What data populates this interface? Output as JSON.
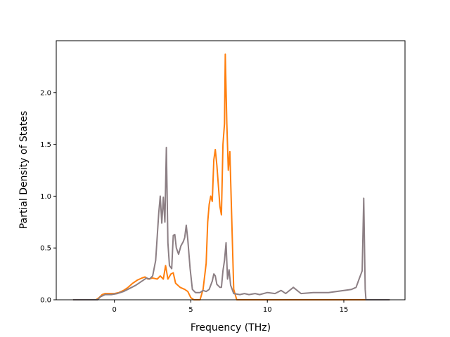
{
  "chart_data": {
    "type": "line",
    "title": "",
    "xlabel": "Frequency (THz)",
    "ylabel": "Partial Density of States",
    "xlim": [
      -3.8,
      19.0
    ],
    "ylim": [
      0.0,
      2.5
    ],
    "xticks": [
      0,
      5,
      10,
      15
    ],
    "yticks": [
      0.0,
      0.5,
      1.0,
      1.5,
      2.0
    ],
    "ytick_labels": [
      "0.0",
      "0.5",
      "1.0",
      "1.5",
      "2.0"
    ],
    "grid": false,
    "legend": "none",
    "series": [
      {
        "color": "#ff7f0e",
        "points": [
          [
            -2.7,
            0.0
          ],
          [
            -1.2,
            0.0
          ],
          [
            -1.0,
            0.02
          ],
          [
            -0.8,
            0.05
          ],
          [
            -0.6,
            0.06
          ],
          [
            -0.3,
            0.06
          ],
          [
            0.0,
            0.06
          ],
          [
            0.3,
            0.07
          ],
          [
            0.6,
            0.09
          ],
          [
            0.9,
            0.12
          ],
          [
            1.2,
            0.16
          ],
          [
            1.5,
            0.19
          ],
          [
            1.8,
            0.21
          ],
          [
            2.0,
            0.22
          ],
          [
            2.2,
            0.2
          ],
          [
            2.5,
            0.21
          ],
          [
            2.8,
            0.2
          ],
          [
            3.0,
            0.23
          ],
          [
            3.2,
            0.2
          ],
          [
            3.35,
            0.33
          ],
          [
            3.5,
            0.2
          ],
          [
            3.7,
            0.25
          ],
          [
            3.85,
            0.26
          ],
          [
            4.0,
            0.16
          ],
          [
            4.3,
            0.12
          ],
          [
            4.6,
            0.1
          ],
          [
            4.8,
            0.08
          ],
          [
            5.0,
            0.02
          ],
          [
            5.2,
            0.0
          ],
          [
            5.6,
            0.0
          ],
          [
            5.8,
            0.1
          ],
          [
            6.0,
            0.35
          ],
          [
            6.1,
            0.75
          ],
          [
            6.2,
            0.92
          ],
          [
            6.3,
            1.0
          ],
          [
            6.4,
            0.95
          ],
          [
            6.5,
            1.35
          ],
          [
            6.6,
            1.45
          ],
          [
            6.7,
            1.3
          ],
          [
            6.8,
            1.1
          ],
          [
            6.9,
            0.9
          ],
          [
            7.0,
            0.82
          ],
          [
            7.1,
            1.5
          ],
          [
            7.2,
            1.7
          ],
          [
            7.25,
            2.37
          ],
          [
            7.35,
            1.7
          ],
          [
            7.45,
            1.25
          ],
          [
            7.55,
            1.43
          ],
          [
            7.65,
            0.9
          ],
          [
            7.8,
            0.1
          ],
          [
            8.0,
            0.0
          ],
          [
            9.0,
            0.0
          ],
          [
            13.0,
            0.0
          ],
          [
            16.4,
            0.0
          ],
          [
            18.0,
            0.0
          ]
        ]
      },
      {
        "color": "#8c7f84",
        "points": [
          [
            -2.7,
            0.0
          ],
          [
            -1.1,
            0.0
          ],
          [
            -0.9,
            0.03
          ],
          [
            -0.6,
            0.05
          ],
          [
            -0.2,
            0.05
          ],
          [
            0.2,
            0.06
          ],
          [
            0.6,
            0.08
          ],
          [
            1.0,
            0.11
          ],
          [
            1.4,
            0.14
          ],
          [
            1.8,
            0.18
          ],
          [
            2.1,
            0.21
          ],
          [
            2.3,
            0.2
          ],
          [
            2.5,
            0.23
          ],
          [
            2.7,
            0.38
          ],
          [
            2.9,
            0.84
          ],
          [
            3.0,
            1.0
          ],
          [
            3.1,
            0.74
          ],
          [
            3.2,
            0.99
          ],
          [
            3.3,
            0.75
          ],
          [
            3.4,
            1.47
          ],
          [
            3.5,
            0.55
          ],
          [
            3.6,
            0.33
          ],
          [
            3.75,
            0.3
          ],
          [
            3.85,
            0.62
          ],
          [
            3.95,
            0.63
          ],
          [
            4.05,
            0.5
          ],
          [
            4.2,
            0.44
          ],
          [
            4.35,
            0.52
          ],
          [
            4.5,
            0.56
          ],
          [
            4.6,
            0.6
          ],
          [
            4.7,
            0.72
          ],
          [
            4.8,
            0.58
          ],
          [
            4.95,
            0.3
          ],
          [
            5.1,
            0.1
          ],
          [
            5.3,
            0.07
          ],
          [
            5.6,
            0.07
          ],
          [
            5.8,
            0.09
          ],
          [
            6.0,
            0.08
          ],
          [
            6.2,
            0.1
          ],
          [
            6.4,
            0.18
          ],
          [
            6.5,
            0.25
          ],
          [
            6.6,
            0.23
          ],
          [
            6.7,
            0.15
          ],
          [
            6.9,
            0.12
          ],
          [
            7.0,
            0.12
          ],
          [
            7.1,
            0.28
          ],
          [
            7.2,
            0.38
          ],
          [
            7.3,
            0.55
          ],
          [
            7.4,
            0.2
          ],
          [
            7.5,
            0.29
          ],
          [
            7.6,
            0.14
          ],
          [
            7.8,
            0.06
          ],
          [
            8.2,
            0.05
          ],
          [
            8.5,
            0.06
          ],
          [
            8.8,
            0.05
          ],
          [
            9.2,
            0.06
          ],
          [
            9.5,
            0.05
          ],
          [
            10.0,
            0.07
          ],
          [
            10.5,
            0.06
          ],
          [
            10.9,
            0.09
          ],
          [
            11.2,
            0.06
          ],
          [
            11.7,
            0.12
          ],
          [
            12.2,
            0.06
          ],
          [
            13.0,
            0.07
          ],
          [
            13.5,
            0.07
          ],
          [
            14.0,
            0.07
          ],
          [
            14.5,
            0.08
          ],
          [
            15.0,
            0.09
          ],
          [
            15.5,
            0.1
          ],
          [
            15.8,
            0.12
          ],
          [
            16.0,
            0.2
          ],
          [
            16.2,
            0.28
          ],
          [
            16.3,
            0.98
          ],
          [
            16.4,
            0.1
          ],
          [
            16.45,
            0.0
          ],
          [
            18.0,
            0.0
          ]
        ]
      }
    ]
  }
}
